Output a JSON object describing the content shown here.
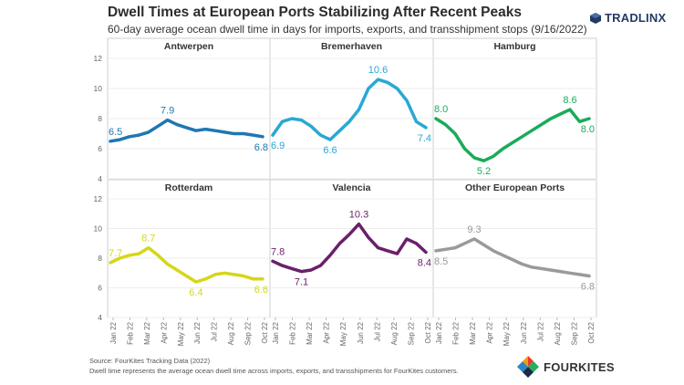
{
  "header": {
    "title": "Dwell Times at European Ports Stabilizing After Recent Peaks",
    "subtitle": "60-day average ocean dwell time in days for imports, exports, and transshipment stops (9/16/2022)"
  },
  "brand": {
    "logo_text": "TRADLINX",
    "icon": "tradlinx-cube-icon",
    "color": "#223a66"
  },
  "footer": {
    "source": "Source: FourKites Tracking Data (2022)",
    "note": "Dwell time represents the average ocean dwell time across imports, exports, and transshipments for FourKites customers.",
    "logo_text": "FOURKITES",
    "logo_icon": "fourkites-kite-icon"
  },
  "chart_data": {
    "type": "line",
    "grid": true,
    "ylim": [
      4,
      12
    ],
    "yticks": [
      "4",
      "6",
      "8",
      "10",
      "12"
    ],
    "x_tick_labels": [
      "Jan 22",
      "Feb 22",
      "Mar 22",
      "Apr 22",
      "May 22",
      "Jun 22",
      "Jul 22",
      "Aug 22",
      "Sep 22",
      "Oct 22"
    ],
    "panels": [
      {
        "name": "Antwerpen",
        "color": "#1f77b4",
        "values": [
          6.5,
          6.6,
          6.8,
          6.9,
          7.1,
          7.5,
          7.9,
          7.6,
          7.4,
          7.2,
          7.3,
          7.2,
          7.1,
          7.0,
          7.0,
          6.9,
          6.8
        ],
        "labels": [
          {
            "text": "6.5",
            "i": 0,
            "pos": "above"
          },
          {
            "text": "7.9",
            "i": 6,
            "pos": "above"
          },
          {
            "text": "6.8",
            "i": 16,
            "pos": "below"
          }
        ]
      },
      {
        "name": "Bremerhaven",
        "color": "#29a8d4",
        "values": [
          6.9,
          7.8,
          8.0,
          7.9,
          7.5,
          6.9,
          6.6,
          7.2,
          7.8,
          8.6,
          10.0,
          10.6,
          10.4,
          10.0,
          9.2,
          7.8,
          7.4
        ],
        "labels": [
          {
            "text": "6.9",
            "i": 0,
            "pos": "below"
          },
          {
            "text": "6.6",
            "i": 6,
            "pos": "below"
          },
          {
            "text": "10.6",
            "i": 11,
            "pos": "above"
          },
          {
            "text": "7.4",
            "i": 16,
            "pos": "below"
          }
        ]
      },
      {
        "name": "Hamburg",
        "color": "#1aab5a",
        "values": [
          8.0,
          7.6,
          7.0,
          6.0,
          5.4,
          5.2,
          5.5,
          6.0,
          6.4,
          6.8,
          7.2,
          7.6,
          8.0,
          8.3,
          8.6,
          7.8,
          8.0
        ],
        "labels": [
          {
            "text": "8.0",
            "i": 0,
            "pos": "above"
          },
          {
            "text": "5.2",
            "i": 5,
            "pos": "below"
          },
          {
            "text": "8.6",
            "i": 14,
            "pos": "above"
          },
          {
            "text": "8.0",
            "i": 16,
            "pos": "below"
          }
        ]
      },
      {
        "name": "Rotterdam",
        "color": "#d6d61a",
        "values": [
          7.7,
          8.0,
          8.2,
          8.3,
          8.7,
          8.2,
          7.6,
          7.2,
          6.8,
          6.4,
          6.6,
          6.9,
          7.0,
          6.9,
          6.8,
          6.6,
          6.6
        ],
        "labels": [
          {
            "text": "7.7",
            "i": 0,
            "pos": "above"
          },
          {
            "text": "8.7",
            "i": 4,
            "pos": "above"
          },
          {
            "text": "6.4",
            "i": 9,
            "pos": "below"
          },
          {
            "text": "6.6",
            "i": 16,
            "pos": "below"
          }
        ]
      },
      {
        "name": "Valencia",
        "color": "#6b1f6b",
        "values": [
          7.8,
          7.5,
          7.3,
          7.1,
          7.2,
          7.5,
          8.2,
          9.0,
          9.6,
          10.3,
          9.4,
          8.7,
          8.5,
          8.3,
          9.3,
          9.0,
          8.4
        ],
        "labels": [
          {
            "text": "7.8",
            "i": 0,
            "pos": "above"
          },
          {
            "text": "7.1",
            "i": 3,
            "pos": "below"
          },
          {
            "text": "10.3",
            "i": 9,
            "pos": "above"
          },
          {
            "text": "8.4",
            "i": 16,
            "pos": "below"
          }
        ]
      },
      {
        "name": "Other European Ports",
        "color": "#9a9a9a",
        "values": [
          8.5,
          8.6,
          8.7,
          9.0,
          9.3,
          8.9,
          8.5,
          8.2,
          7.9,
          7.6,
          7.4,
          7.3,
          7.2,
          7.1,
          7.0,
          6.9,
          6.8
        ],
        "labels": [
          {
            "text": "8.5",
            "i": 0,
            "pos": "below"
          },
          {
            "text": "9.3",
            "i": 4,
            "pos": "above"
          },
          {
            "text": "6.8",
            "i": 16,
            "pos": "below"
          }
        ]
      }
    ]
  }
}
